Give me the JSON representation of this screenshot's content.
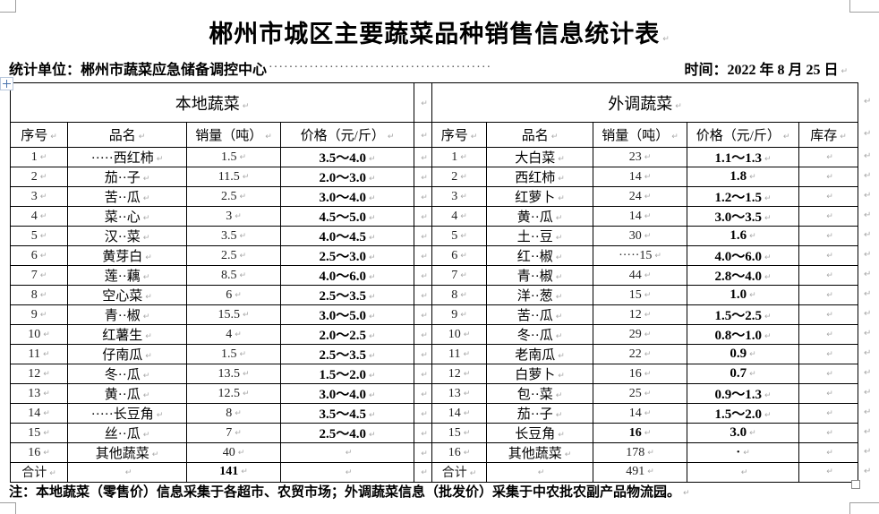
{
  "header": {
    "title": "郴州市城区主要蔬菜品种销售信息统计表",
    "stat_unit": "统计单位：郴州市蔬菜应急储备调控中心",
    "dot_leader": "············································",
    "time": "时间：2022 年 8 月 25 日"
  },
  "table": {
    "left": {
      "group_title": "本地蔬菜",
      "columns": [
        "序号",
        "品名",
        "销量（吨）",
        "价格（元/斤）"
      ],
      "rows": [
        {
          "no": "1",
          "name": "·····西红柿",
          "volume": "1.5",
          "price": "3.5～4.0"
        },
        {
          "no": "2",
          "name": "茄··子",
          "volume": "11.5",
          "price": "2.0～3.0"
        },
        {
          "no": "3",
          "name": "苦··瓜",
          "volume": "2.5",
          "price": "3.0～4.0"
        },
        {
          "no": "4",
          "name": "菜··心",
          "volume": "3",
          "price": "4.5～5.0"
        },
        {
          "no": "5",
          "name": "汉··菜",
          "volume": "3.5",
          "price": "4.0～4.5"
        },
        {
          "no": "6",
          "name": "黄芽白",
          "volume": "2.5",
          "price": "2.5～3.0"
        },
        {
          "no": "7",
          "name": "莲··藕",
          "volume": "8.5",
          "price": "4.0～6.0"
        },
        {
          "no": "8",
          "name": "空心菜",
          "volume": "6",
          "price": "2.5～3.5"
        },
        {
          "no": "9",
          "name": "青··椒",
          "volume": "15.5",
          "price": "3.0～5.0"
        },
        {
          "no": "10",
          "name": "红薯生",
          "volume": "4",
          "price": "2.0～2.5"
        },
        {
          "no": "11",
          "name": "仔南瓜",
          "volume": "1.5",
          "price": "2.5～3.5"
        },
        {
          "no": "12",
          "name": "冬··瓜",
          "volume": "13.5",
          "price": "1.5～2.0"
        },
        {
          "no": "13",
          "name": "黄··瓜",
          "volume": "12.5",
          "price": "3.0～4.0"
        },
        {
          "no": "14",
          "name": "·····长豆角",
          "volume": "8",
          "price": "3.5～4.5"
        },
        {
          "no": "15",
          "name": "丝··瓜",
          "volume": "7",
          "price": "2.5～4.0"
        },
        {
          "no": "16",
          "name": "其他蔬菜",
          "volume": "40",
          "price": ""
        },
        {
          "no": "合计",
          "name": "",
          "volume": "141",
          "price": "",
          "bold_volume": true
        }
      ]
    },
    "right": {
      "group_title": "外调蔬菜",
      "columns": [
        "序号",
        "品名",
        "销量（吨）",
        "价格（元/斤）",
        "库存"
      ],
      "rows": [
        {
          "no": "1",
          "name": "大白菜",
          "volume": "23",
          "price": "1.1～1.3",
          "stock": ""
        },
        {
          "no": "2",
          "name": "西红柿",
          "volume": "14",
          "price": "1.8",
          "stock": ""
        },
        {
          "no": "3",
          "name": "红萝卜",
          "volume": "24",
          "price": "1.2～1.5",
          "stock": ""
        },
        {
          "no": "4",
          "name": "黄··瓜",
          "volume": "14",
          "price": "3.0～3.5",
          "stock": ""
        },
        {
          "no": "5",
          "name": "土··豆",
          "volume": "30",
          "price": "1.6",
          "stock": ""
        },
        {
          "no": "6",
          "name": "红··椒",
          "volume": "·····15",
          "price": "4.0～6.0",
          "stock": ""
        },
        {
          "no": "7",
          "name": "青··椒",
          "volume": "44",
          "price": "2.8～4.0",
          "stock": ""
        },
        {
          "no": "8",
          "name": "洋··葱",
          "volume": "15",
          "price": "1.0",
          "stock": ""
        },
        {
          "no": "9",
          "name": "苦··瓜",
          "volume": "12",
          "price": "1.5～2.5",
          "stock": ""
        },
        {
          "no": "10",
          "name": "冬··瓜",
          "volume": "29",
          "price": "0.8～1.0",
          "stock": ""
        },
        {
          "no": "11",
          "name": "老南瓜",
          "volume": "22",
          "price": "0.9",
          "stock": ""
        },
        {
          "no": "12",
          "name": "白萝卜",
          "volume": "16",
          "price": "0.7",
          "stock": ""
        },
        {
          "no": "13",
          "name": "包··菜",
          "volume": "25",
          "price": "0.9～1.3",
          "stock": ""
        },
        {
          "no": "14",
          "name": "茄··子",
          "volume": "14",
          "price": "1.5～2.0",
          "stock": ""
        },
        {
          "no": "15",
          "name": "长豆角",
          "volume": "16",
          "price": "3.0",
          "stock": "",
          "bold_volume": true
        },
        {
          "no": "16",
          "name": "其他蔬菜",
          "volume": "178",
          "price": "·",
          "stock": ""
        },
        {
          "no": "合计",
          "name": "",
          "volume": "491",
          "price": "",
          "stock": ""
        }
      ]
    }
  },
  "footnote": "注：本地蔬菜（零售价）信息采集于各超市、农贸市场；外调蔬菜信息（批发价）采集于中农批农副产品物流园。",
  "marks": {
    "end_of_cell": "↵",
    "end_of_row": "↵"
  },
  "colors": {
    "border": "#000000",
    "pilcrow_gray": "#a9a9a9",
    "handle_blue": "#4a74ad",
    "crop_gray": "#9e9e9e"
  }
}
